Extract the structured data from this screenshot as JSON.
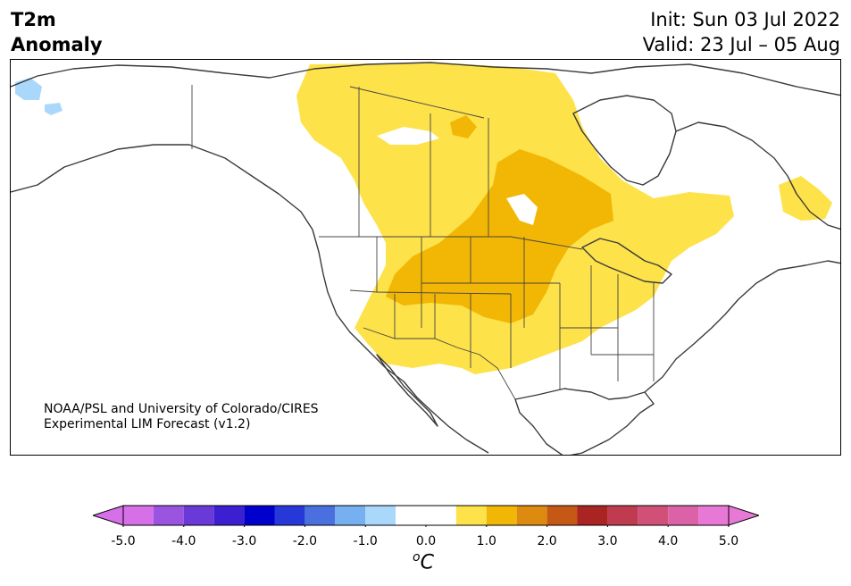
{
  "header": {
    "title_line1": "T2m",
    "title_line2": "Anomaly",
    "init": "Init: Sun 03 Jul 2022",
    "valid": "Valid: 23 Jul – 05 Aug"
  },
  "credit": {
    "line1": "NOAA/PSL and University of Colorado/CIRES",
    "line2": "Experimental LIM Forecast (v1.2)"
  },
  "colorbar": {
    "unit_symbol": "o",
    "unit_letter": "C",
    "ticks": [
      "-5.0",
      "-4.0",
      "-3.0",
      "-2.0",
      "-1.0",
      "0.0",
      "1.0",
      "2.0",
      "3.0",
      "4.0",
      "5.0"
    ],
    "tick_values": [
      -5,
      -4,
      -3,
      -2,
      -1,
      0,
      1,
      2,
      3,
      4,
      5
    ],
    "range": [
      -5,
      5
    ],
    "bins": [
      {
        "from": -5.0,
        "to": -4.5,
        "color": "#d66fe8"
      },
      {
        "from": -4.5,
        "to": -4.0,
        "color": "#9b54e0"
      },
      {
        "from": -4.0,
        "to": -3.5,
        "color": "#6a3ad8"
      },
      {
        "from": -3.5,
        "to": -3.0,
        "color": "#3b1fd0"
      },
      {
        "from": -3.0,
        "to": -2.5,
        "color": "#0000cc"
      },
      {
        "from": -2.5,
        "to": -2.0,
        "color": "#2638d8"
      },
      {
        "from": -2.0,
        "to": -1.5,
        "color": "#4a70e0"
      },
      {
        "from": -1.5,
        "to": -1.0,
        "color": "#76b0f0"
      },
      {
        "from": -1.0,
        "to": -0.5,
        "color": "#aad8fa"
      },
      {
        "from": -0.5,
        "to": 0.5,
        "color": "#ffffff"
      },
      {
        "from": 0.5,
        "to": 1.0,
        "color": "#fde24a"
      },
      {
        "from": 1.0,
        "to": 1.5,
        "color": "#f2b705"
      },
      {
        "from": 1.5,
        "to": 2.0,
        "color": "#dc8a10"
      },
      {
        "from": 2.0,
        "to": 2.5,
        "color": "#c65816"
      },
      {
        "from": 2.5,
        "to": 3.0,
        "color": "#ab2424"
      },
      {
        "from": 3.0,
        "to": 3.5,
        "color": "#c03a50"
      },
      {
        "from": 3.5,
        "to": 4.0,
        "color": "#d05078"
      },
      {
        "from": 4.0,
        "to": 4.5,
        "color": "#dc62a8"
      },
      {
        "from": 4.5,
        "to": 5.0,
        "color": "#e878d6"
      }
    ],
    "under_color": "#d66fe8",
    "over_color": "#e878d6"
  },
  "map": {
    "colors": {
      "warm_light": "#fde24a",
      "warm_mid": "#f2b705",
      "cold_light": "#aad8fa",
      "coastline": "#3a3a3a",
      "borders": "#444444"
    }
  }
}
